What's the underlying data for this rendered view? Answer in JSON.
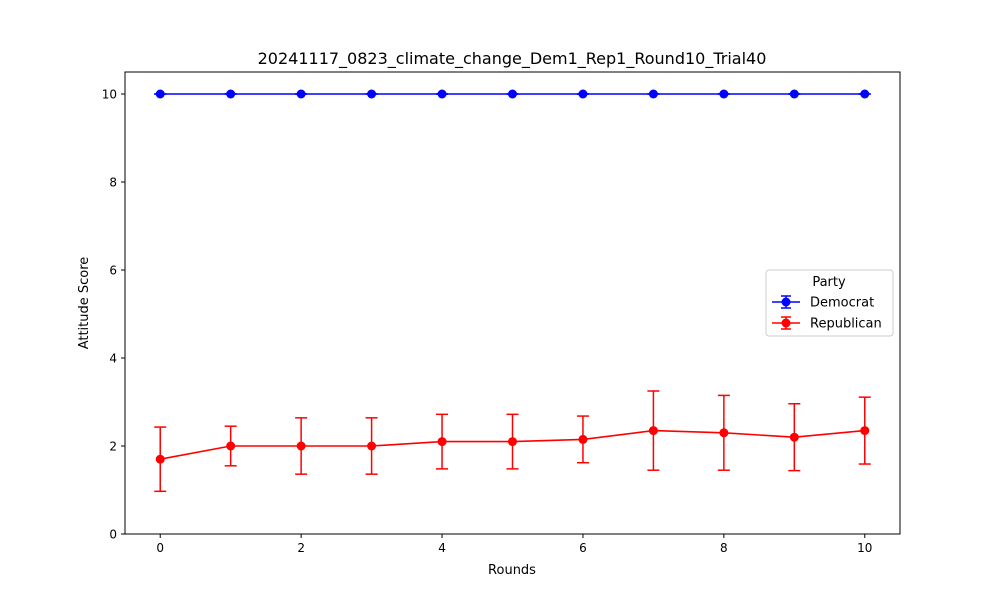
{
  "chart_data": {
    "type": "line",
    "title": "20241117_0823_climate_change_Dem1_Rep1_Round10_Trial40",
    "xlabel": "Rounds",
    "ylabel": "Attitude Score",
    "x": [
      0,
      1,
      2,
      3,
      4,
      5,
      6,
      7,
      8,
      9,
      10
    ],
    "xlim": [
      -0.5,
      10.5
    ],
    "ylim": [
      0,
      10.5
    ],
    "xticks": [
      0,
      2,
      4,
      6,
      8,
      10
    ],
    "yticks": [
      0,
      2,
      4,
      6,
      8,
      10
    ],
    "grid": false,
    "legend": {
      "title": "Party",
      "placement": "center-right"
    },
    "series": [
      {
        "name": "Democrat",
        "color": "#0000ff",
        "values": [
          10,
          10,
          10,
          10,
          10,
          10,
          10,
          10,
          10,
          10,
          10
        ],
        "errors": [
          0,
          0,
          0,
          0,
          0,
          0,
          0,
          0,
          0,
          0,
          0
        ]
      },
      {
        "name": "Republican",
        "color": "#ff0000",
        "values": [
          1.7,
          2.0,
          2.0,
          2.0,
          2.1,
          2.1,
          2.15,
          2.35,
          2.3,
          2.2,
          2.35
        ],
        "errors": [
          0.73,
          0.45,
          0.64,
          0.64,
          0.62,
          0.62,
          0.53,
          0.9,
          0.85,
          0.76,
          0.76
        ]
      }
    ]
  }
}
